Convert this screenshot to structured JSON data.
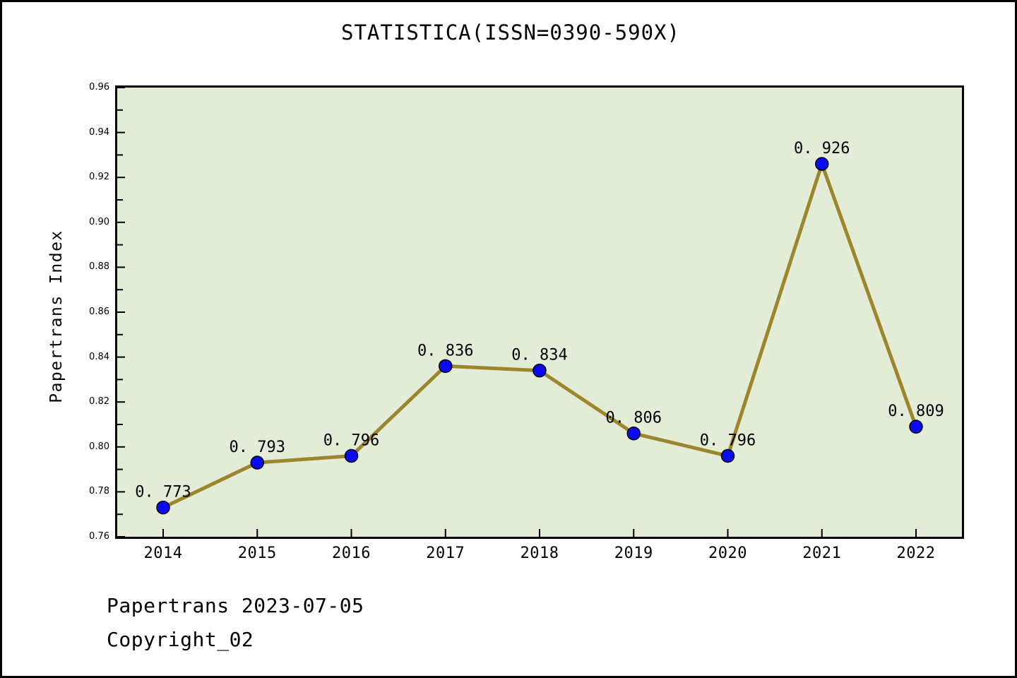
{
  "window": {
    "background": "#ffffff",
    "border_color": "#000000"
  },
  "chart": {
    "plot_bg": "#e2ecd6",
    "line_color": "#9b862d",
    "marker_color": "#0a0af0",
    "marker_edge_color": "#000000",
    "axis_color": "#000000",
    "text_color": "#000000"
  },
  "chart_data": {
    "type": "line",
    "title": "STATISTICA(ISSN=0390-590X)",
    "xlabel": "",
    "ylabel": "Papertrans Index",
    "categories": [
      "2014",
      "2015",
      "2016",
      "2017",
      "2018",
      "2019",
      "2020",
      "2021",
      "2022"
    ],
    "values": [
      0.773,
      0.793,
      0.796,
      0.836,
      0.834,
      0.806,
      0.796,
      0.926,
      0.809
    ],
    "point_labels": [
      "0. 773",
      "0. 793",
      "0. 796",
      "0. 836",
      "0. 834",
      "0. 806",
      "0. 796",
      "0. 926",
      "0. 809"
    ],
    "ylim": [
      0.76,
      0.96
    ],
    "y_major_step": 0.02,
    "y_minor_step": 0.01,
    "y_tick_labels": [
      "0.96",
      "0.94",
      "0.92",
      "0.90",
      "0.88",
      "0.86",
      "0.84",
      "0.82",
      "0.80",
      "0.78",
      "0.76"
    ],
    "grid": false,
    "legend_position": "none"
  },
  "footer": {
    "line1": "Papertrans 2023-07-05",
    "line2": "Copyright_02"
  }
}
